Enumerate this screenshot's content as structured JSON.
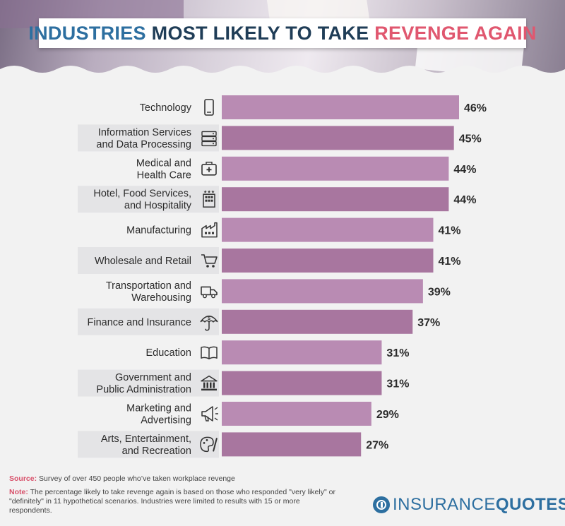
{
  "title": {
    "part1": "INDUSTRIES",
    "part2": "MOST LIKELY TO TAKE",
    "part3": "REVENGE AGAIN"
  },
  "colors": {
    "bar_light": "#b98bb3",
    "bar_dark": "#a8769f",
    "title_blue": "#2d6fa0",
    "title_pink": "#e0576f",
    "label_bg": "#e4e4e6"
  },
  "chart_data": {
    "type": "bar",
    "orientation": "horizontal",
    "categories": [
      "Technology",
      "Information Services and Data Processing",
      "Medical and Health Care",
      "Hotel, Food Services, and Hospitality",
      "Manufacturing",
      "Wholesale and Retail",
      "Transportation and Warehousing",
      "Finance and Insurance",
      "Education",
      "Government and Public Administration",
      "Marketing and Advertising",
      "Arts, Entertainment, and Recreation"
    ],
    "category_lines": [
      [
        "Technology"
      ],
      [
        "Information Services",
        "and Data Processing"
      ],
      [
        "Medical and",
        "Health Care"
      ],
      [
        "Hotel, Food Services,",
        "and Hospitality"
      ],
      [
        "Manufacturing"
      ],
      [
        "Wholesale and Retail"
      ],
      [
        "Transportation and",
        "Warehousing"
      ],
      [
        "Finance and Insurance"
      ],
      [
        "Education"
      ],
      [
        "Government and",
        "Public Administration"
      ],
      [
        "Marketing and",
        "Advertising"
      ],
      [
        "Arts, Entertainment,",
        "and Recreation"
      ]
    ],
    "icons": [
      "smartphone-icon",
      "server-icon",
      "medical-kit-icon",
      "hotel-icon",
      "factory-icon",
      "shopping-cart-icon",
      "truck-icon",
      "umbrella-dollar-icon",
      "book-icon",
      "government-building-icon",
      "megaphone-icon",
      "art-palette-icon"
    ],
    "values": [
      46,
      45,
      44,
      44,
      41,
      41,
      39,
      37,
      31,
      31,
      29,
      27
    ],
    "value_labels": [
      "46%",
      "45%",
      "44%",
      "44%",
      "41%",
      "41%",
      "39%",
      "37%",
      "31%",
      "31%",
      "29%",
      "27%"
    ],
    "unit": "%",
    "xlim": [
      0,
      46
    ],
    "grid": false
  },
  "footer": {
    "source_label": "Source:",
    "source_text": "Survey of over 450 people who’ve taken workplace revenge",
    "note_label": "Note:",
    "note_text": "The percentage likely to take revenge again is based on those who responded \"very likely\" or \"definitely\" in 11 hypothetical scenarios. Industries were limited to results with 15 or more respondents."
  },
  "logo": {
    "word1": "INSURANCE",
    "word2": "QUOTES"
  }
}
